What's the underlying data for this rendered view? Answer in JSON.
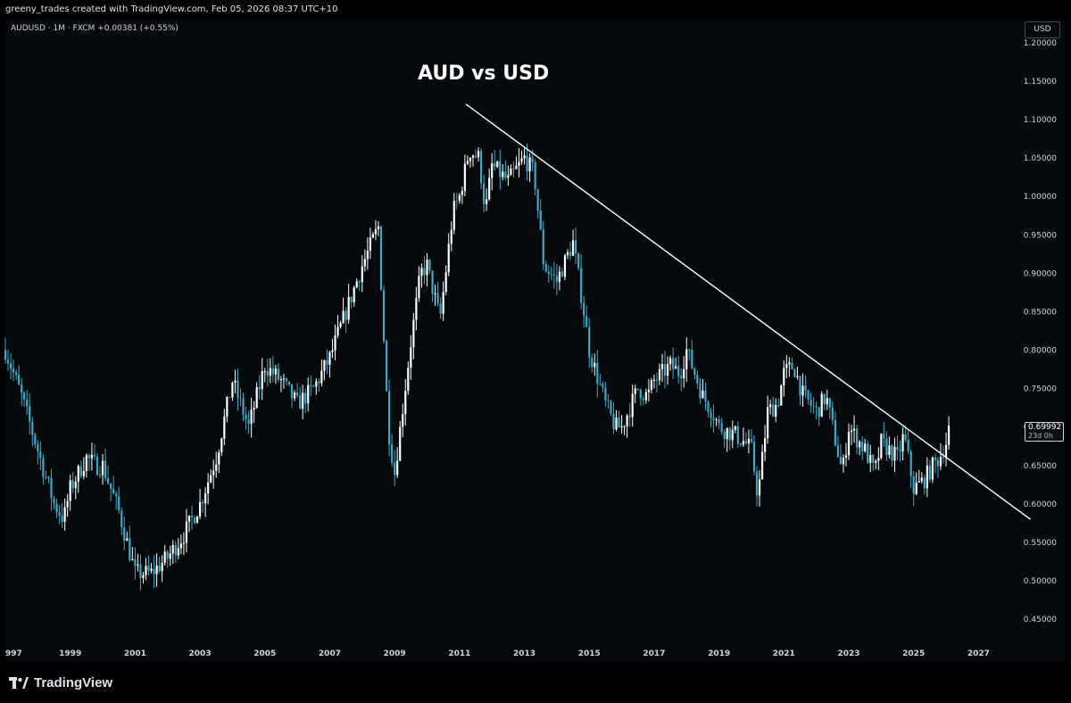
{
  "header": {
    "attribution": "greeny_trades created with TradingView.com, Feb 05, 2026 08:37 UTC+10",
    "symbol_line": "AUDUSD · 1M · FXCM  +0.00381 (+0.55%)",
    "currency_button": "USD"
  },
  "price_label": {
    "value": "0.69992",
    "countdown": "23d 0h"
  },
  "footer": {
    "logo_text": "TradingView"
  },
  "colors": {
    "up": "#ffffff",
    "down": "#3fa8c7",
    "trendline": "#ffffff",
    "background": "#05090b"
  },
  "chart_data": {
    "type": "candlestick",
    "title": "AUD vs USD",
    "xlabel": "",
    "ylabel": "",
    "y_ticks": [
      "1.20000",
      "1.15000",
      "1.10000",
      "1.05000",
      "1.00000",
      "0.95000",
      "0.90000",
      "0.85000",
      "0.80000",
      "0.75000",
      "0.70000",
      "0.65000",
      "0.60000",
      "0.55000",
      "0.50000",
      "0.45000"
    ],
    "x_ticks": [
      "997",
      "1999",
      "2001",
      "2003",
      "2005",
      "2007",
      "2009",
      "2011",
      "2013",
      "2015",
      "2017",
      "2019",
      "2021",
      "2023",
      "2025",
      "2027"
    ],
    "ylim": [
      0.42,
      1.23
    ],
    "xlim": [
      1997.0,
      2028.2
    ],
    "series": [
      {
        "name": "",
        "points": [
          [
            1997.0,
            0.8
          ],
          [
            1997.5,
            0.74
          ],
          [
            1998.0,
            0.67
          ],
          [
            1998.5,
            0.6
          ],
          [
            1998.8,
            0.58
          ],
          [
            1999.0,
            0.62
          ],
          [
            1999.5,
            0.66
          ],
          [
            1999.8,
            0.65
          ],
          [
            2000.0,
            0.65
          ],
          [
            2000.5,
            0.59
          ],
          [
            2001.0,
            0.51
          ],
          [
            2001.5,
            0.51
          ],
          [
            2002.0,
            0.53
          ],
          [
            2002.5,
            0.56
          ],
          [
            2003.0,
            0.6
          ],
          [
            2003.5,
            0.66
          ],
          [
            2004.0,
            0.76
          ],
          [
            2004.5,
            0.7
          ],
          [
            2005.0,
            0.78
          ],
          [
            2005.5,
            0.76
          ],
          [
            2006.0,
            0.73
          ],
          [
            2006.5,
            0.75
          ],
          [
            2007.0,
            0.79
          ],
          [
            2007.5,
            0.85
          ],
          [
            2008.0,
            0.91
          ],
          [
            2008.5,
            0.96
          ],
          [
            2008.8,
            0.7
          ],
          [
            2009.0,
            0.64
          ],
          [
            2009.5,
            0.81
          ],
          [
            2009.8,
            0.9
          ],
          [
            2010.0,
            0.91
          ],
          [
            2010.4,
            0.84
          ],
          [
            2010.8,
            0.98
          ],
          [
            2011.0,
            1.0
          ],
          [
            2011.3,
            1.06
          ],
          [
            2011.6,
            1.05
          ],
          [
            2011.8,
            0.98
          ],
          [
            2012.0,
            1.04
          ],
          [
            2012.5,
            1.02
          ],
          [
            2013.0,
            1.05
          ],
          [
            2013.3,
            1.03
          ],
          [
            2013.6,
            0.91
          ],
          [
            2014.0,
            0.89
          ],
          [
            2014.5,
            0.94
          ],
          [
            2014.8,
            0.86
          ],
          [
            2015.0,
            0.8
          ],
          [
            2015.5,
            0.73
          ],
          [
            2015.8,
            0.7
          ],
          [
            2016.0,
            0.7
          ],
          [
            2016.5,
            0.75
          ],
          [
            2016.8,
            0.74
          ],
          [
            2017.0,
            0.76
          ],
          [
            2017.5,
            0.78
          ],
          [
            2017.8,
            0.77
          ],
          [
            2018.0,
            0.8
          ],
          [
            2018.5,
            0.74
          ],
          [
            2018.8,
            0.72
          ],
          [
            2019.0,
            0.7
          ],
          [
            2019.5,
            0.69
          ],
          [
            2019.8,
            0.68
          ],
          [
            2020.0,
            0.67
          ],
          [
            2020.2,
            0.61
          ],
          [
            2020.5,
            0.72
          ],
          [
            2020.8,
            0.73
          ],
          [
            2021.0,
            0.77
          ],
          [
            2021.3,
            0.78
          ],
          [
            2021.6,
            0.74
          ],
          [
            2022.0,
            0.72
          ],
          [
            2022.3,
            0.74
          ],
          [
            2022.6,
            0.68
          ],
          [
            2022.8,
            0.64
          ],
          [
            2023.0,
            0.7
          ],
          [
            2023.5,
            0.67
          ],
          [
            2023.8,
            0.64
          ],
          [
            2024.0,
            0.68
          ],
          [
            2024.5,
            0.66
          ],
          [
            2024.7,
            0.69
          ],
          [
            2025.0,
            0.62
          ],
          [
            2025.3,
            0.63
          ],
          [
            2025.6,
            0.65
          ],
          [
            2025.8,
            0.66
          ],
          [
            2026.0,
            0.68
          ],
          [
            2026.1,
            0.7
          ]
        ]
      }
    ],
    "trendline": {
      "x": [
        2011.2,
        2028.6
      ],
      "y": [
        1.12,
        0.58
      ]
    },
    "last_price": 0.69992,
    "grid": false,
    "legend": "none"
  }
}
